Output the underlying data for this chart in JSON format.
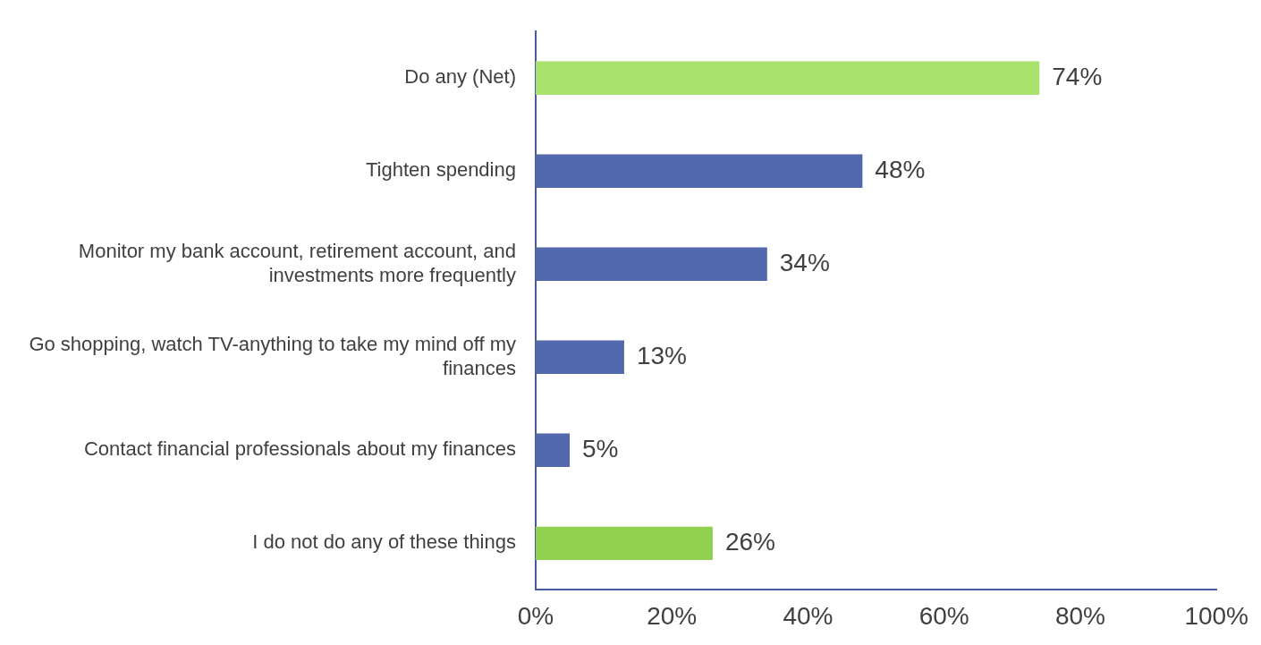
{
  "chart_data": {
    "type": "bar",
    "orientation": "horizontal",
    "categories": [
      "Do any (Net)",
      "Tighten spending",
      "Monitor my bank account, retirement account, and investments more frequently",
      "Go shopping, watch TV-anything to take my mind off my finances",
      "Contact financial professionals about my finances",
      "I do not do any of these things"
    ],
    "values": [
      74,
      48,
      34,
      13,
      5,
      26
    ],
    "colors": [
      "#a9e36d",
      "#5268ad",
      "#5268ad",
      "#5268ad",
      "#5268ad",
      "#92d050"
    ],
    "value_labels": [
      "74%",
      "48%",
      "34%",
      "13%",
      "5%",
      "26%"
    ],
    "xlim": [
      0,
      100
    ],
    "xticks": [
      {
        "value": 0,
        "label": "0%"
      },
      {
        "value": 20,
        "label": "20%"
      },
      {
        "value": 40,
        "label": "40%"
      },
      {
        "value": 60,
        "label": "60%"
      },
      {
        "value": 80,
        "label": "80%"
      },
      {
        "value": 100,
        "label": "100%"
      }
    ],
    "grid": false,
    "legend": false
  }
}
